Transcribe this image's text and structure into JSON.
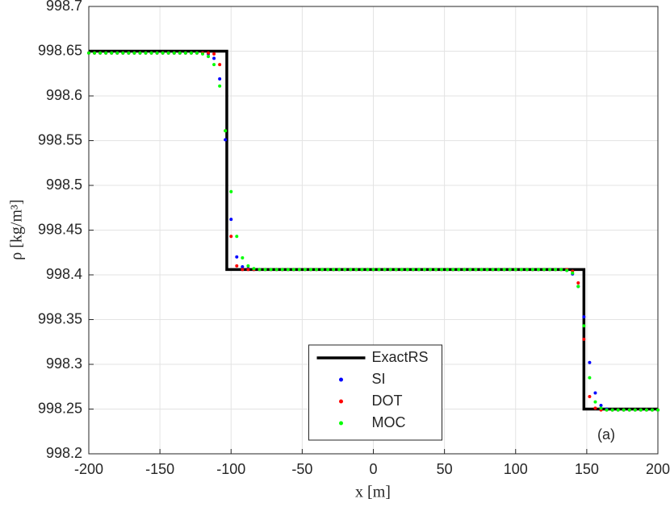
{
  "chart_data": {
    "type": "line",
    "ylabel": "ρ [kg/m³]",
    "xlabel": "x [m]",
    "annotation": "(a)",
    "xlim": [
      -200,
      200
    ],
    "xticks": [
      -200,
      -150,
      -100,
      -50,
      0,
      50,
      100,
      150,
      200
    ],
    "ylim": [
      998.2,
      998.7
    ],
    "yticks": [
      998.2,
      998.25,
      998.3,
      998.35,
      998.4,
      998.45,
      998.5,
      998.55,
      998.6,
      998.65,
      998.7
    ],
    "grid": true,
    "legend_loc": "lower center",
    "x": [
      -200,
      -196,
      -192,
      -188,
      -184,
      -180,
      -176,
      -172,
      -168,
      -164,
      -160,
      -156,
      -152,
      -148,
      -144,
      -140,
      -136,
      -132,
      -128,
      -124,
      -120,
      -116,
      -112,
      -108,
      -104,
      -100,
      -96,
      -92,
      -88,
      -84,
      -80,
      -76,
      -72,
      -68,
      -64,
      -60,
      -56,
      -52,
      -48,
      -44,
      -40,
      -36,
      -32,
      -28,
      -24,
      -20,
      -16,
      -12,
      -8,
      -4,
      0,
      4,
      8,
      12,
      16,
      20,
      24,
      28,
      32,
      36,
      40,
      44,
      48,
      52,
      56,
      60,
      64,
      68,
      72,
      76,
      80,
      84,
      88,
      92,
      96,
      100,
      104,
      108,
      112,
      116,
      120,
      124,
      128,
      132,
      136,
      140,
      144,
      148,
      152,
      156,
      160,
      164,
      168,
      172,
      176,
      180,
      184,
      188,
      192,
      196,
      200
    ],
    "series": [
      {
        "name": "ExactRS",
        "type": "line",
        "color": "#000000",
        "x": [
          -200,
          -103,
          -103,
          148,
          148,
          200
        ],
        "values": [
          998.65,
          998.65,
          998.406,
          998.406,
          998.25,
          998.25
        ]
      },
      {
        "name": "SI",
        "type": "scatter",
        "color": "#0000ff",
        "values": [
          998.648,
          998.648,
          998.648,
          998.648,
          998.648,
          998.648,
          998.648,
          998.648,
          998.648,
          998.648,
          998.648,
          998.648,
          998.648,
          998.648,
          998.648,
          998.648,
          998.648,
          998.648,
          998.648,
          998.648,
          998.648,
          998.647,
          998.642,
          998.619,
          998.551,
          998.462,
          998.42,
          998.409,
          998.407,
          998.406,
          998.406,
          998.406,
          998.406,
          998.406,
          998.406,
          998.406,
          998.406,
          998.406,
          998.406,
          998.406,
          998.406,
          998.406,
          998.406,
          998.406,
          998.406,
          998.406,
          998.406,
          998.406,
          998.406,
          998.406,
          998.406,
          998.406,
          998.406,
          998.406,
          998.406,
          998.406,
          998.406,
          998.406,
          998.406,
          998.406,
          998.406,
          998.406,
          998.406,
          998.406,
          998.406,
          998.406,
          998.406,
          998.406,
          998.406,
          998.406,
          998.406,
          998.406,
          998.406,
          998.406,
          998.406,
          998.406,
          998.406,
          998.406,
          998.406,
          998.406,
          998.406,
          998.406,
          998.406,
          998.406,
          998.405,
          998.401,
          998.387,
          998.353,
          998.302,
          998.268,
          998.254,
          998.25,
          998.249,
          998.249,
          998.249,
          998.249,
          998.249,
          998.249,
          998.249,
          998.249,
          998.249
        ]
      },
      {
        "name": "DOT",
        "type": "scatter",
        "color": "#ff0000",
        "values": [
          998.648,
          998.648,
          998.648,
          998.648,
          998.648,
          998.648,
          998.648,
          998.648,
          998.648,
          998.648,
          998.648,
          998.648,
          998.648,
          998.648,
          998.648,
          998.648,
          998.648,
          998.648,
          998.648,
          998.648,
          998.648,
          998.648,
          998.647,
          998.635,
          998.561,
          998.443,
          998.41,
          998.406,
          998.406,
          998.406,
          998.406,
          998.406,
          998.406,
          998.406,
          998.406,
          998.406,
          998.406,
          998.406,
          998.406,
          998.406,
          998.406,
          998.406,
          998.406,
          998.406,
          998.406,
          998.406,
          998.406,
          998.406,
          998.406,
          998.406,
          998.406,
          998.406,
          998.406,
          998.406,
          998.406,
          998.406,
          998.406,
          998.406,
          998.406,
          998.406,
          998.406,
          998.406,
          998.406,
          998.406,
          998.406,
          998.406,
          998.406,
          998.406,
          998.406,
          998.406,
          998.406,
          998.406,
          998.406,
          998.406,
          998.406,
          998.406,
          998.406,
          998.406,
          998.406,
          998.406,
          998.406,
          998.406,
          998.406,
          998.406,
          998.406,
          998.404,
          998.391,
          998.328,
          998.264,
          998.251,
          998.249,
          998.249,
          998.249,
          998.249,
          998.249,
          998.249,
          998.249,
          998.249,
          998.249,
          998.249,
          998.249
        ]
      },
      {
        "name": "MOC",
        "type": "scatter",
        "color": "#00ff00",
        "values": [
          998.648,
          998.648,
          998.648,
          998.648,
          998.648,
          998.648,
          998.648,
          998.648,
          998.648,
          998.648,
          998.648,
          998.648,
          998.648,
          998.648,
          998.648,
          998.648,
          998.648,
          998.648,
          998.648,
          998.648,
          998.647,
          998.644,
          998.635,
          998.611,
          998.561,
          998.493,
          998.443,
          998.419,
          998.41,
          998.407,
          998.406,
          998.406,
          998.406,
          998.406,
          998.406,
          998.406,
          998.406,
          998.406,
          998.406,
          998.406,
          998.406,
          998.406,
          998.406,
          998.406,
          998.406,
          998.406,
          998.406,
          998.406,
          998.406,
          998.406,
          998.406,
          998.406,
          998.406,
          998.406,
          998.406,
          998.406,
          998.406,
          998.406,
          998.406,
          998.406,
          998.406,
          998.406,
          998.406,
          998.406,
          998.406,
          998.406,
          998.406,
          998.406,
          998.406,
          998.406,
          998.406,
          998.406,
          998.406,
          998.406,
          998.406,
          998.406,
          998.406,
          998.406,
          998.406,
          998.406,
          998.406,
          998.406,
          998.406,
          998.406,
          998.405,
          998.402,
          998.387,
          998.343,
          998.285,
          998.258,
          998.251,
          998.249,
          998.249,
          998.249,
          998.249,
          998.249,
          998.249,
          998.249,
          998.249,
          998.249,
          998.249
        ]
      }
    ]
  }
}
